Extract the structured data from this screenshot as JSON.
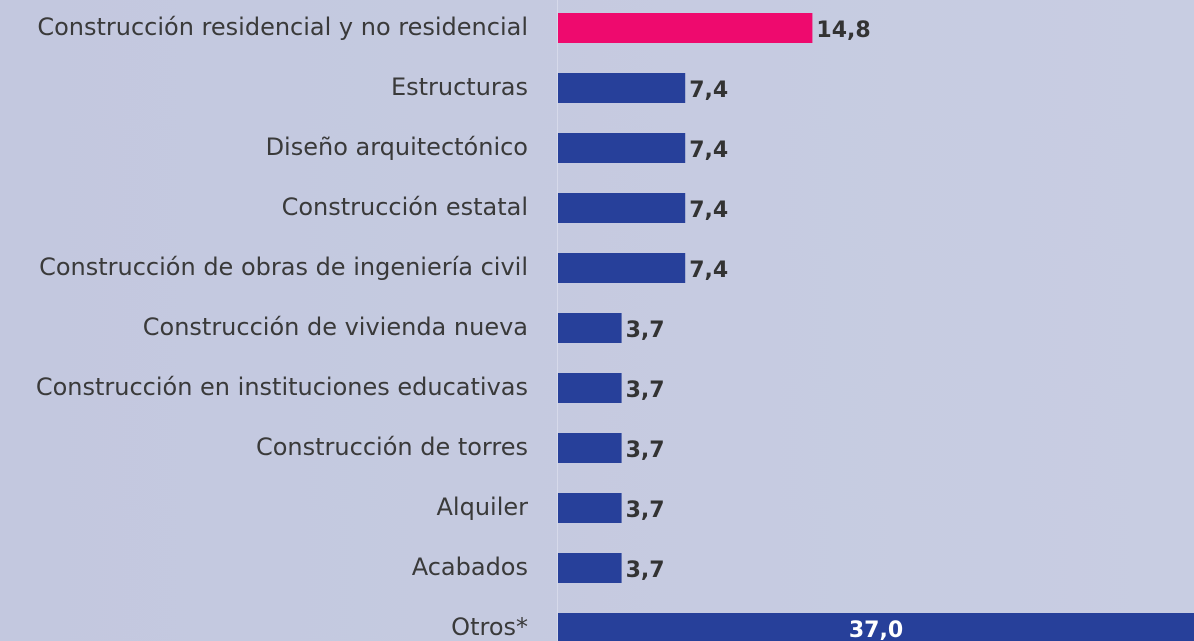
{
  "chart_data": {
    "type": "bar",
    "orientation": "horizontal",
    "categories": [
      "Construcción residencial y no residencial",
      "Estructuras",
      "Diseño arquitectónico",
      "Construcción estatal",
      "Construcción de obras de ingeniería civil",
      "Construcción de vivienda nueva",
      "Construcción en instituciones educativas",
      "Construcción de torres",
      "Alquiler",
      "Acabados",
      "Otros*"
    ],
    "values": [
      14.8,
      7.4,
      7.4,
      7.4,
      7.4,
      3.7,
      3.7,
      3.7,
      3.7,
      3.7,
      37.0
    ],
    "value_labels": [
      "14,8",
      "7,4",
      "7,4",
      "7,4",
      "7,4",
      "3,7",
      "3,7",
      "3,7",
      "3,7",
      "3,7",
      "37,0"
    ],
    "colors": [
      "#ee0a6e",
      "#27409a",
      "#27409a",
      "#27409a",
      "#27409a",
      "#27409a",
      "#27409a",
      "#27409a",
      "#27409a",
      "#27409a",
      "#27409a"
    ]
  }
}
